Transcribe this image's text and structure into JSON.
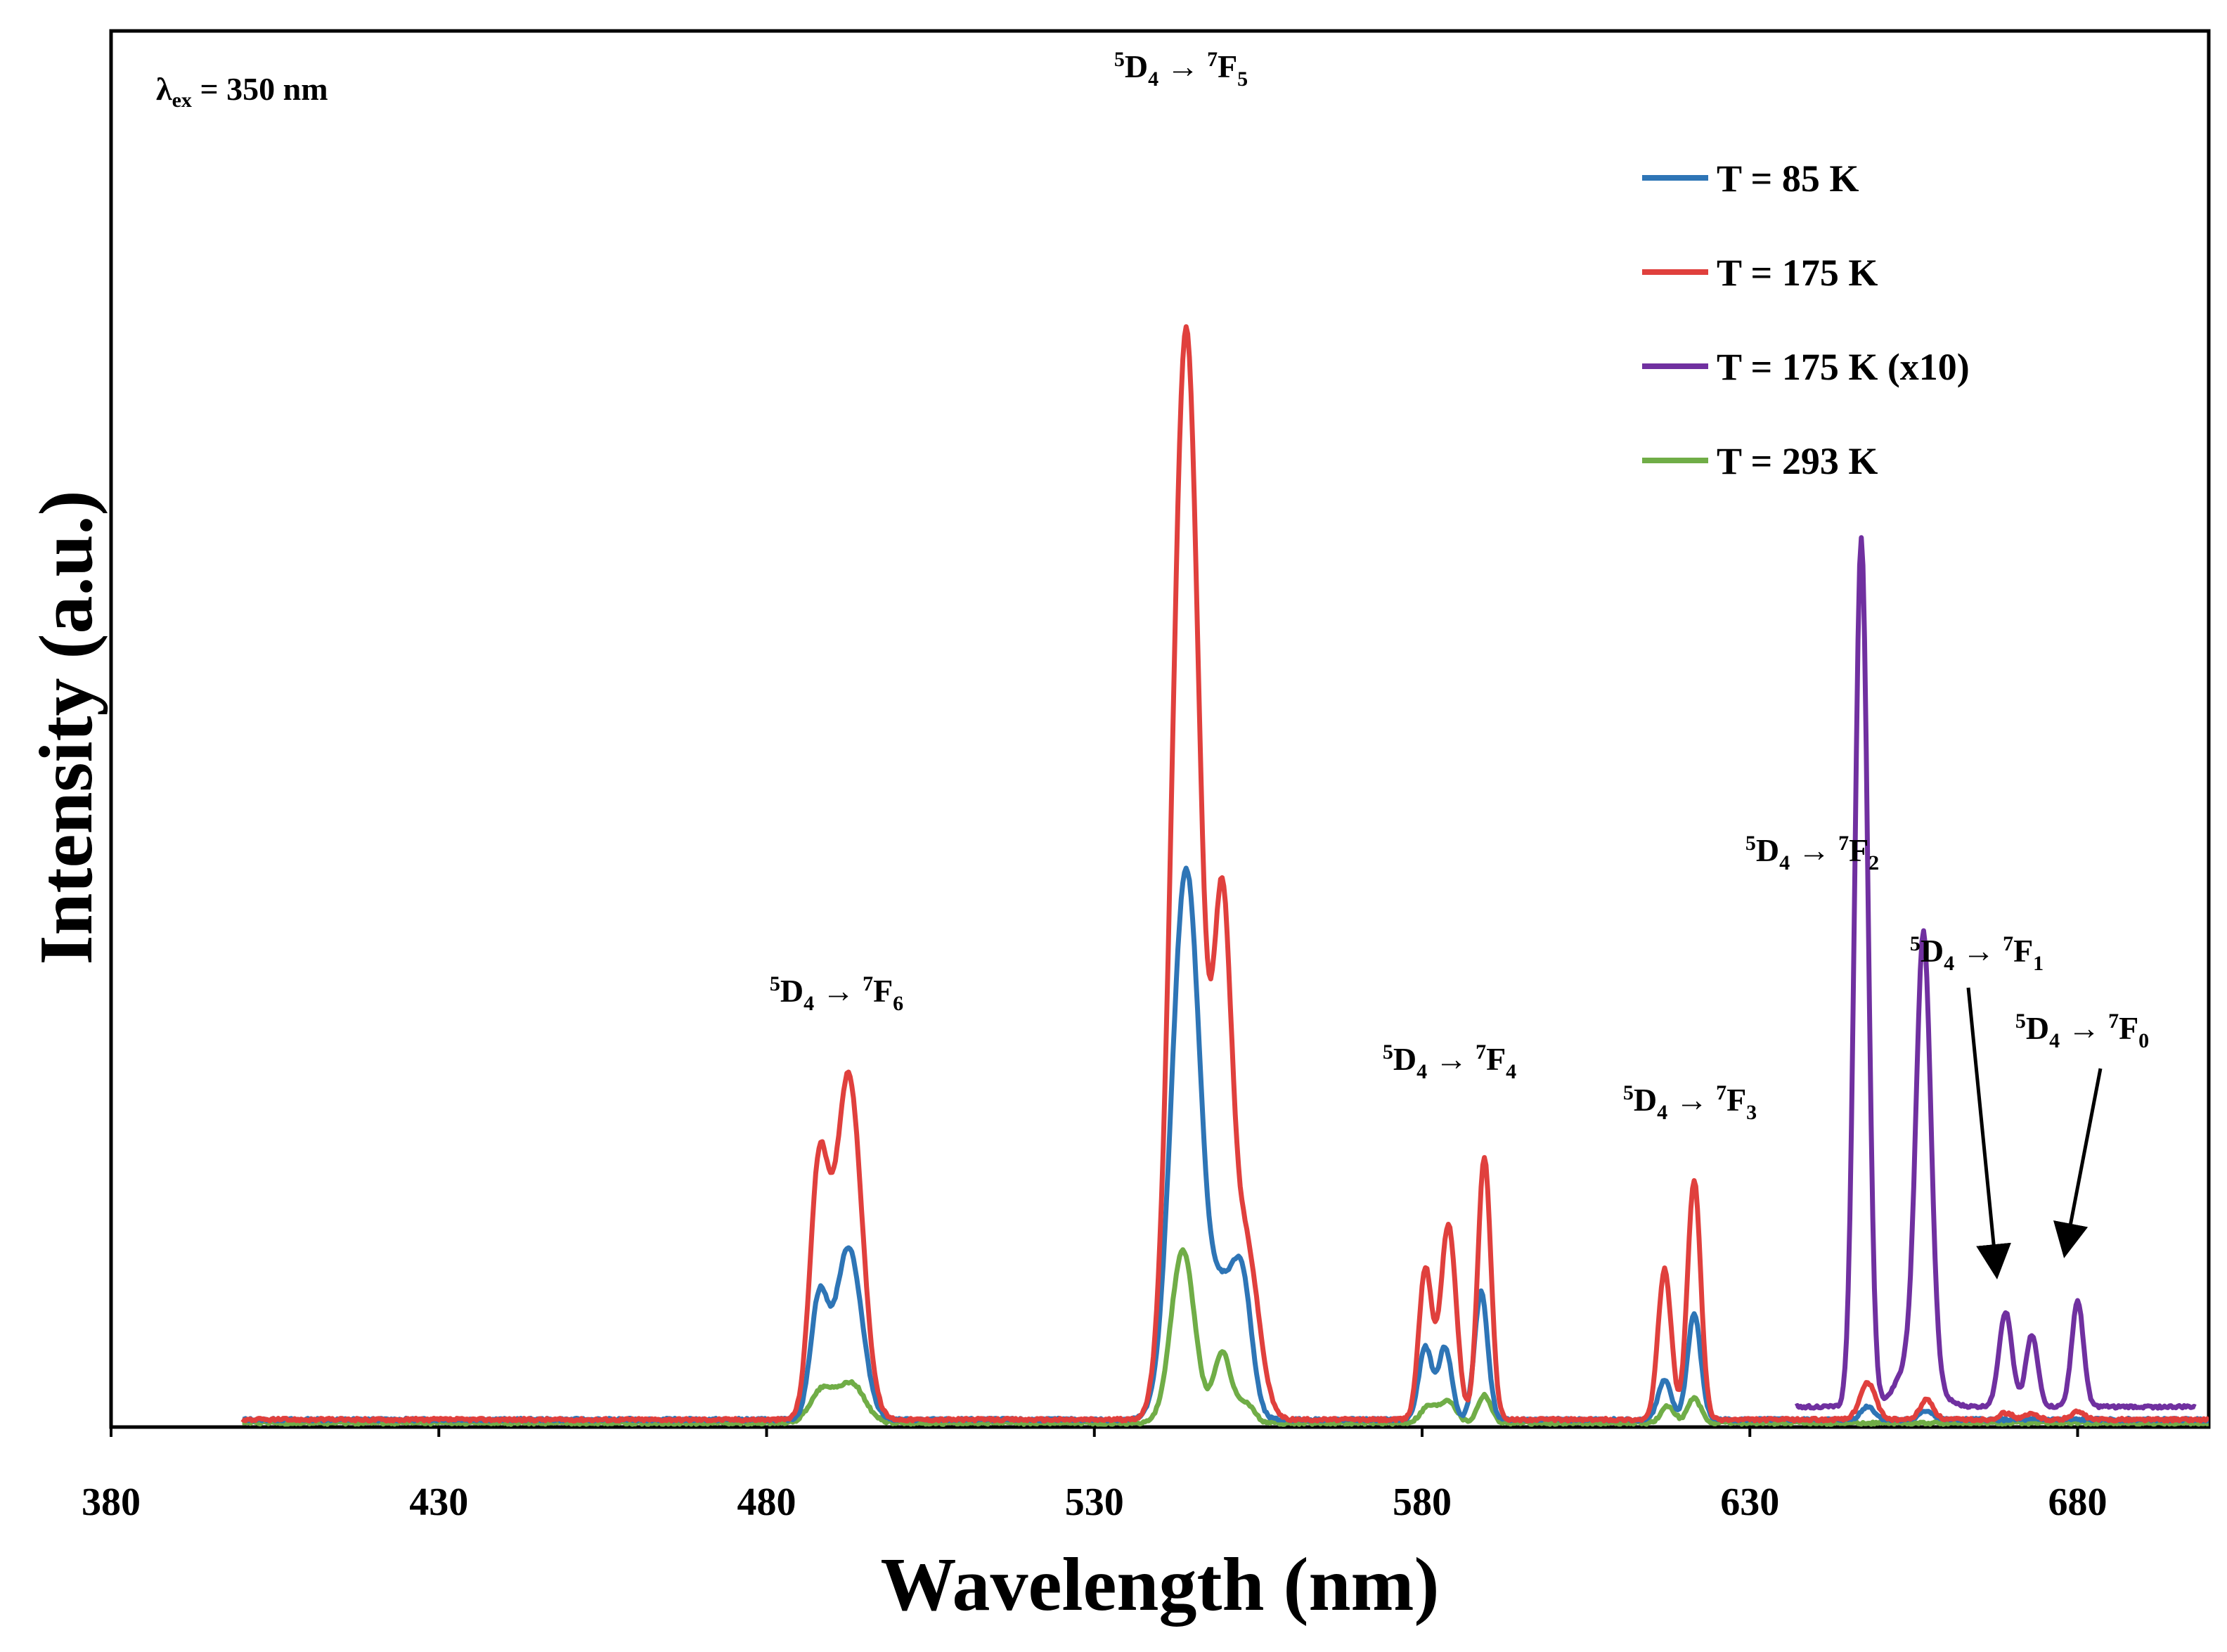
{
  "chart_data": {
    "type": "line",
    "title": "",
    "xlabel": "Wavelength (nm)",
    "ylabel": "Intensity (a.u.)",
    "xlim": [
      380,
      700
    ],
    "ylim": [
      0,
      100
    ],
    "xticks": [
      "380",
      "430",
      "480",
      "530",
      "580",
      "630",
      "680"
    ],
    "grid": false,
    "legend_position": "top-right",
    "excitation_note": {
      "symbol": "λ",
      "sub": "ex",
      "text": " = 350 nm"
    },
    "transitions": [
      {
        "wavelength": 490,
        "peak": 76,
        "sup1": "5",
        "base1": "D",
        "sub1": "4",
        "arrow": " → ",
        "sup2": "7",
        "base2": "F",
        "sub2": "6"
      },
      {
        "wavelength": 544,
        "peak": 100,
        "sup1": "5",
        "base1": "D",
        "sub1": "4",
        "arrow": " → ",
        "sup2": "7",
        "base2": "F",
        "sub2": "5"
      },
      {
        "wavelength": 584,
        "peak": 72,
        "sup1": "5",
        "base1": "D",
        "sub1": "4",
        "arrow": " → ",
        "sup2": "7",
        "base2": "F",
        "sub2": "4"
      },
      {
        "wavelength": 621,
        "peak": 69,
        "sup1": "5",
        "base1": "D",
        "sub1": "4",
        "arrow": " → ",
        "sup2": "7",
        "base2": "F",
        "sub2": "3"
      },
      {
        "wavelength": 649,
        "peak": 115,
        "sup1": "5",
        "base1": "D",
        "sub1": "4",
        "arrow": " → ",
        "sup2": "7",
        "base2": "F",
        "sub2": "2"
      },
      {
        "wavelength": 668,
        "peak": 10,
        "sup1": "5",
        "base1": "D",
        "sub1": "4",
        "arrow": " → ",
        "sup2": "7",
        "base2": "F",
        "sub2": "1"
      },
      {
        "wavelength": 679,
        "peak": 10,
        "sup1": "5",
        "base1": "D",
        "sub1": "4",
        "arrow": " → ",
        "sup2": "7",
        "base2": "F",
        "sub2": "0"
      }
    ],
    "series": [
      {
        "name": "T = 85 K",
        "color": "#2E75B6",
        "x_range": [
          400,
          700
        ],
        "baseline": 0.35,
        "peaks": [
          [
            488,
            10.5,
            1.3
          ],
          [
            492.5,
            15.5,
            2.0
          ],
          [
            544,
            49.5,
            2.2
          ],
          [
            549.5,
            9.5,
            1.6
          ],
          [
            552.5,
            12.5,
            1.5
          ],
          [
            580.5,
            6.5,
            1.0
          ],
          [
            583.5,
            6.5,
            1.0
          ],
          [
            589,
            11.5,
            1.0
          ],
          [
            617,
            3.5,
            1.0
          ],
          [
            621.5,
            9.5,
            1.0
          ],
          [
            648,
            1.2,
            1.0
          ],
          [
            657,
            0.8,
            1.0
          ]
        ]
      },
      {
        "name": "T = 175 K",
        "color": "#E0403D",
        "x_range": [
          400,
          700
        ],
        "baseline": 0.35,
        "peaks": [
          [
            488,
            22,
            1.4
          ],
          [
            492.5,
            31,
            2.0
          ],
          [
            544,
            98,
            2.1
          ],
          [
            549.5,
            42,
            1.4
          ],
          [
            553,
            16,
            2.0
          ],
          [
            580.5,
            13.5,
            1.0
          ],
          [
            584,
            17.5,
            1.2
          ],
          [
            589.5,
            23.5,
            1.0
          ],
          [
            617,
            13.5,
            1.0
          ],
          [
            621.5,
            21.5,
            1.0
          ],
          [
            648,
            3.3,
            1.2
          ],
          [
            657,
            1.8,
            1.0
          ],
          [
            669,
            0.6,
            1.0
          ],
          [
            673,
            0.5,
            1.0
          ],
          [
            680,
            0.7,
            1.0
          ]
        ]
      },
      {
        "name": "T = 175 K (x10)",
        "color": "#7030A0",
        "x_range": [
          637,
          698
        ],
        "baseline": 1.5,
        "peaks": [
          [
            647,
            78,
            1.0
          ],
          [
            655.5,
            5,
            2.5
          ],
          [
            656.5,
            38,
            1.1
          ],
          [
            669,
            8.5,
            1.0
          ],
          [
            673,
            6.5,
            0.9
          ],
          [
            680,
            9.5,
            0.9
          ]
        ]
      },
      {
        "name": "T = 293 K",
        "color": "#70AD47",
        "x_range": [
          400,
          700
        ],
        "baseline": 0.05,
        "peaks": [
          [
            488.5,
            3,
            1.8
          ],
          [
            493,
            3.5,
            2.0
          ],
          [
            543.5,
            15.5,
            1.8
          ],
          [
            549.5,
            6.3,
            1.3
          ],
          [
            553,
            1.8,
            1.3
          ],
          [
            581,
            1.5,
            1.2
          ],
          [
            584,
            2,
            1.2
          ],
          [
            589.5,
            2.5,
            1.0
          ],
          [
            617.5,
            1.5,
            1.0
          ],
          [
            621.5,
            2.2,
            1.0
          ]
        ]
      }
    ]
  }
}
